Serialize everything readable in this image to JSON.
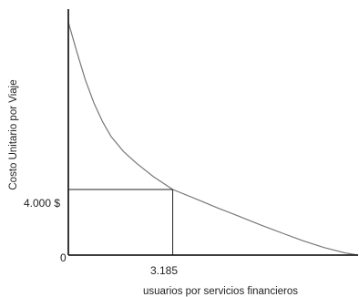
{
  "chart_data": {
    "type": "line",
    "title": "",
    "xlabel": "usuarios por servicios financieros",
    "ylabel": "Costo Unitario por Viaje",
    "origin_label": "0",
    "grid": false,
    "legend": "none",
    "highlight": {
      "x": 3185,
      "y": 4000,
      "x_label": "3.185",
      "y_label": "4.000 $"
    },
    "series": [
      {
        "x": [
          0,
          260,
          520,
          780,
          1040,
          1300,
          1690,
          2080,
          2600,
          3185,
          3900,
          4550,
          5200,
          5850,
          6500,
          7150,
          7800,
          8450,
          8840
        ],
        "y": [
          14200,
          12380,
          10680,
          9270,
          8150,
          7240,
          6300,
          5600,
          4780,
          4000,
          3420,
          2880,
          2370,
          1850,
          1360,
          880,
          460,
          130,
          0
        ]
      }
    ],
    "color": "#777777",
    "axis_color": "#222222"
  }
}
